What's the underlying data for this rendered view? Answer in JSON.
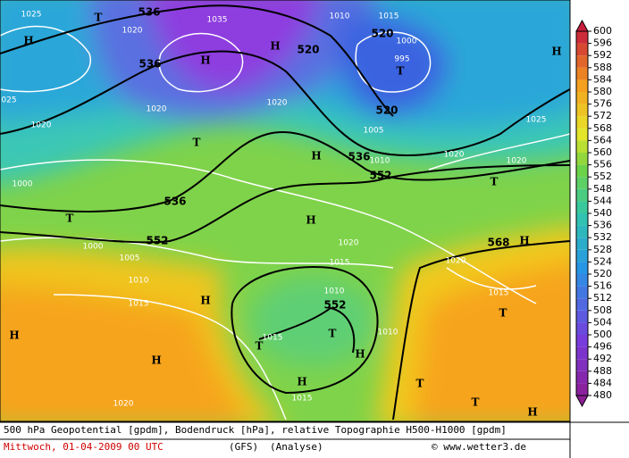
{
  "map": {
    "labels": [
      "1025",
      "T",
      "536",
      "1020",
      "H",
      "536",
      "H",
      "1035",
      "H",
      "520",
      "1010",
      "1015",
      "520",
      "1000",
      "995",
      "T",
      "520",
      "1005",
      "H",
      "1025",
      "1020",
      "025",
      "1020",
      "1020",
      "T",
      "536",
      "1010",
      "H",
      "552",
      "1020",
      "1020",
      "T",
      "1000",
      "536",
      "T",
      "H",
      "552",
      "1000",
      "1020",
      "568",
      "H",
      "1005",
      "1015",
      "1020",
      "1010",
      "1015",
      "H",
      "1010",
      "552",
      "1015",
      "T",
      "T",
      "H",
      "T",
      "1015",
      "1010",
      "H",
      "H",
      "H",
      "1015",
      "T",
      "T",
      "H",
      "1020"
    ],
    "colorbar": {
      "values": [
        480,
        484,
        488,
        492,
        496,
        500,
        504,
        508,
        512,
        516,
        520,
        524,
        528,
        532,
        536,
        540,
        544,
        548,
        552,
        556,
        560,
        564,
        568,
        572,
        576,
        580,
        584,
        588,
        592,
        596,
        600
      ]
    },
    "footer": {
      "line1": "500 hPa Geopotential [gpdm], Bodendruck [hPa], relative Topographie H500-H1000 [gpdm]",
      "date": "Mittwoch, 01-04-2009  00 UTC",
      "model": "(GFS)",
      "kind": "(Analyse)",
      "copyright": "© www.wetter3.de"
    }
  }
}
